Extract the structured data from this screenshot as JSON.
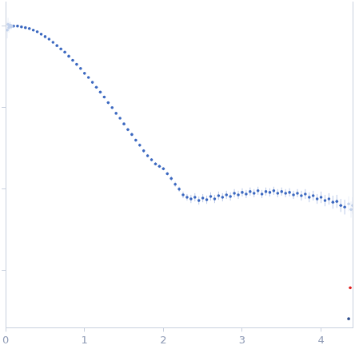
{
  "chart_data": {
    "type": "scatter",
    "xlim": [
      0,
      4.4
    ],
    "xticks": [
      0,
      1,
      2,
      3,
      4
    ],
    "ylim": [
      -3.7,
      0.3
    ],
    "yticks": [
      -3,
      -2,
      -1,
      0
    ],
    "grid": false,
    "tick_labels": "x",
    "series": [
      {
        "color": "#c3d2ec",
        "marker": "circle",
        "x": [
          0.02,
          0.03,
          0.04,
          0.05,
          0.06,
          0.07,
          0.08,
          4.35,
          4.38,
          4.4
        ],
        "values": [
          -0.05,
          0.02,
          -0.02,
          0.0,
          0.01,
          -0.01,
          0.0,
          -2.18,
          -2.25,
          -2.2
        ],
        "errors": [
          0.1,
          0.08,
          0.06,
          0.05,
          0.04,
          0.03,
          0.02,
          0.09,
          0.1,
          0.1
        ]
      },
      {
        "color": "#3b68c0",
        "marker": "circle",
        "x": [
          0.1,
          0.15,
          0.2,
          0.25,
          0.3,
          0.35,
          0.4,
          0.45,
          0.5,
          0.55,
          0.6,
          0.65,
          0.7,
          0.75,
          0.8,
          0.85,
          0.9,
          0.95,
          1.0,
          1.05,
          1.1,
          1.15,
          1.2,
          1.25,
          1.3,
          1.35,
          1.4,
          1.45,
          1.5,
          1.55,
          1.6,
          1.65,
          1.7,
          1.75,
          1.8,
          1.85,
          1.9,
          1.95,
          2.0,
          2.05,
          2.1,
          2.15,
          2.2,
          2.25,
          2.3,
          2.35,
          2.4,
          2.45,
          2.5,
          2.55,
          2.6,
          2.65,
          2.7,
          2.75,
          2.8,
          2.85,
          2.9,
          2.95,
          3.0,
          3.05,
          3.1,
          3.15,
          3.2,
          3.25,
          3.3,
          3.35,
          3.4,
          3.45,
          3.5,
          3.55,
          3.6,
          3.65,
          3.7,
          3.75,
          3.8,
          3.85,
          3.9,
          3.95,
          4.0,
          4.05,
          4.1,
          4.15,
          4.2,
          4.25,
          4.3
        ],
        "values": [
          0.0,
          0.0,
          -0.01,
          -0.02,
          -0.03,
          -0.05,
          -0.07,
          -0.1,
          -0.13,
          -0.16,
          -0.2,
          -0.24,
          -0.28,
          -0.32,
          -0.37,
          -0.42,
          -0.47,
          -0.52,
          -0.58,
          -0.63,
          -0.69,
          -0.75,
          -0.81,
          -0.87,
          -0.94,
          -1.0,
          -1.07,
          -1.13,
          -1.2,
          -1.27,
          -1.33,
          -1.4,
          -1.46,
          -1.53,
          -1.59,
          -1.64,
          -1.69,
          -1.72,
          -1.75,
          -1.81,
          -1.87,
          -1.94,
          -2.0,
          -2.07,
          -2.1,
          -2.12,
          -2.1,
          -2.14,
          -2.11,
          -2.13,
          -2.09,
          -2.12,
          -2.08,
          -2.1,
          -2.07,
          -2.09,
          -2.05,
          -2.07,
          -2.04,
          -2.06,
          -2.03,
          -2.05,
          -2.02,
          -2.06,
          -2.03,
          -2.04,
          -2.02,
          -2.05,
          -2.03,
          -2.05,
          -2.04,
          -2.07,
          -2.05,
          -2.08,
          -2.06,
          -2.1,
          -2.08,
          -2.12,
          -2.1,
          -2.14,
          -2.12,
          -2.16,
          -2.15,
          -2.2,
          -2.22
        ],
        "errors": [
          0.01,
          0.01,
          0.01,
          0.01,
          0.01,
          0.01,
          0.01,
          0.01,
          0.01,
          0.01,
          0.01,
          0.01,
          0.01,
          0.01,
          0.01,
          0.01,
          0.01,
          0.01,
          0.01,
          0.01,
          0.01,
          0.01,
          0.01,
          0.01,
          0.01,
          0.01,
          0.01,
          0.01,
          0.01,
          0.02,
          0.02,
          0.02,
          0.02,
          0.02,
          0.02,
          0.02,
          0.02,
          0.02,
          0.02,
          0.02,
          0.03,
          0.03,
          0.03,
          0.04,
          0.04,
          0.05,
          0.05,
          0.05,
          0.05,
          0.05,
          0.05,
          0.05,
          0.05,
          0.05,
          0.05,
          0.05,
          0.05,
          0.05,
          0.05,
          0.05,
          0.05,
          0.05,
          0.05,
          0.05,
          0.05,
          0.05,
          0.05,
          0.05,
          0.05,
          0.05,
          0.05,
          0.05,
          0.05,
          0.06,
          0.06,
          0.06,
          0.06,
          0.06,
          0.07,
          0.07,
          0.07,
          0.08,
          0.08,
          0.08,
          0.09
        ]
      },
      {
        "color": "#e02020",
        "marker": "circle",
        "x": [
          4.37
        ],
        "values": [
          -3.21
        ],
        "errors": [
          0.0
        ]
      },
      {
        "color": "#2a4a8a",
        "marker": "circle",
        "x": [
          4.35
        ],
        "values": [
          -3.59
        ],
        "errors": [
          0.0
        ]
      }
    ]
  }
}
